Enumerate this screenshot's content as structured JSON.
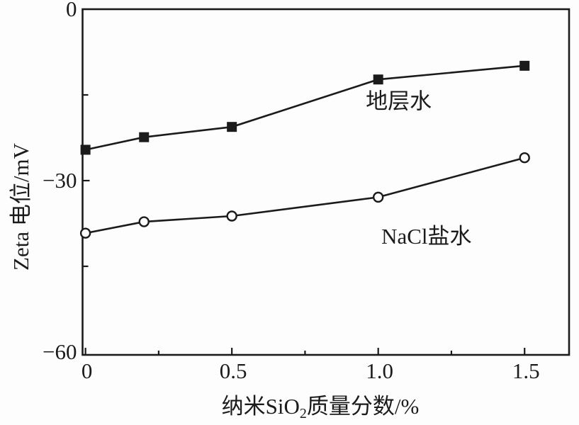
{
  "figure": {
    "background": "#fdfdfd",
    "ink": "#1b1b1b"
  },
  "chart_data": {
    "type": "line",
    "title": "",
    "xlabel": "纳米SiO2质量分数/%",
    "xlabel_parts": [
      {
        "text": "纳米SiO",
        "sub": false
      },
      {
        "text": "2",
        "sub": true
      },
      {
        "text": "质量分数/%",
        "sub": false
      }
    ],
    "ylabel": "Zeta 电位/mV",
    "x": [
      0,
      0.2,
      0.5,
      1.0,
      1.5
    ],
    "series": [
      {
        "id": "formation-water",
        "name": "地层水",
        "marker": "filled-square",
        "values": [
          -24.6,
          -22.4,
          -20.6,
          -12.3,
          -9.9
        ],
        "label": {
          "text": "地层水",
          "x": 1.07,
          "y": -16.2
        }
      },
      {
        "id": "nacl-brine",
        "name": "NaCl盐水",
        "marker": "open-circle",
        "values": [
          -39.2,
          -37.2,
          -36.2,
          -32.9,
          -26.0
        ],
        "label": {
          "text": "NaCl盐水",
          "x": 1.165,
          "y": -39.8
        }
      }
    ],
    "x_ticks": {
      "major": [
        {
          "v": 0,
          "label": "0"
        },
        {
          "v": 0.5,
          "label": "0.5"
        },
        {
          "v": 1.0,
          "label": "1.0"
        },
        {
          "v": 1.5,
          "label": "1.5"
        }
      ],
      "minor": [
        0.25,
        0.75,
        1.25
      ]
    },
    "y_ticks": {
      "major": [
        {
          "v": 0,
          "label": "0",
          "draw_tick": false
        },
        {
          "v": -30,
          "label": "−30",
          "draw_tick": true
        },
        {
          "v": -60,
          "label": "−60",
          "draw_tick": false
        }
      ],
      "minor": [
        -15,
        -45
      ]
    },
    "xlim": [
      -0.01,
      1.652
    ],
    "ylim": [
      -60.5,
      0
    ],
    "grid": false,
    "legend": "inline-text-labels"
  }
}
